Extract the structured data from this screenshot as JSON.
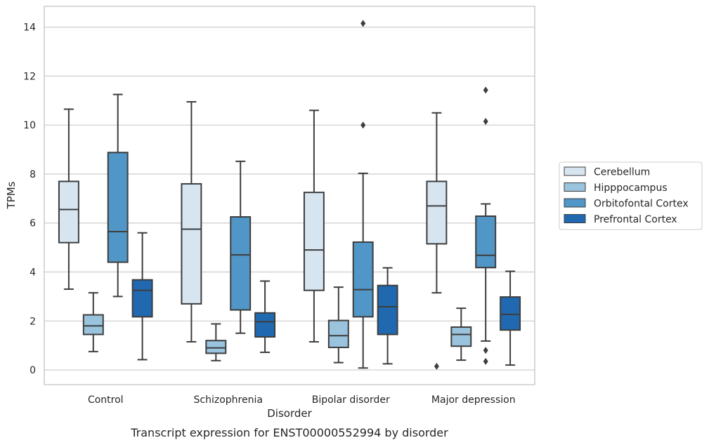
{
  "chart_data": {
    "type": "box",
    "caption": "Transcript expression for ENST00000552994 by disorder",
    "xlabel": "Disorder",
    "ylabel": "TPMs",
    "ylim": [
      -0.6,
      14.85
    ],
    "yticks": [
      0,
      2,
      4,
      6,
      8,
      10,
      12,
      14
    ],
    "grid": "horizontal",
    "legend_placement": "center-right outside",
    "categories": [
      "Control",
      "Schizophrenia",
      "Bipolar disorder",
      "Major depression"
    ],
    "series": [
      {
        "name": "Cerebellum",
        "color": "#d7e5f1",
        "boxes": [
          {
            "whislo": 3.3,
            "q1": 5.2,
            "med": 6.55,
            "q3": 7.7,
            "whishi": 10.65,
            "fliers": []
          },
          {
            "whislo": 1.15,
            "q1": 2.7,
            "med": 5.75,
            "q3": 7.6,
            "whishi": 10.95,
            "fliers": []
          },
          {
            "whislo": 1.15,
            "q1": 3.25,
            "med": 4.9,
            "q3": 7.25,
            "whishi": 10.6,
            "fliers": []
          },
          {
            "whislo": 3.15,
            "q1": 5.15,
            "med": 6.7,
            "q3": 7.7,
            "whishi": 10.5,
            "fliers": [
              0.15
            ]
          }
        ]
      },
      {
        "name": "Hipppocampus",
        "color": "#9ac3dd",
        "boxes": [
          {
            "whislo": 0.75,
            "q1": 1.45,
            "med": 1.8,
            "q3": 2.25,
            "whishi": 3.15,
            "fliers": []
          },
          {
            "whislo": 0.38,
            "q1": 0.68,
            "med": 0.9,
            "q3": 1.2,
            "whishi": 1.88,
            "fliers": []
          },
          {
            "whislo": 0.3,
            "q1": 0.92,
            "med": 1.4,
            "q3": 2.02,
            "whishi": 3.38,
            "fliers": []
          },
          {
            "whislo": 0.4,
            "q1": 0.97,
            "med": 1.45,
            "q3": 1.75,
            "whishi": 2.52,
            "fliers": []
          }
        ]
      },
      {
        "name": "Orbitofontal Cortex",
        "color": "#5096c7",
        "boxes": [
          {
            "whislo": 3.0,
            "q1": 4.4,
            "med": 5.65,
            "q3": 8.88,
            "whishi": 11.25,
            "fliers": []
          },
          {
            "whislo": 1.5,
            "q1": 2.45,
            "med": 4.7,
            "q3": 6.25,
            "whishi": 8.52,
            "fliers": []
          },
          {
            "whislo": 0.08,
            "q1": 2.17,
            "med": 3.28,
            "q3": 5.22,
            "whishi": 8.03,
            "fliers": [
              10.0,
              14.15
            ]
          },
          {
            "whislo": 1.18,
            "q1": 4.18,
            "med": 4.68,
            "q3": 6.28,
            "whishi": 6.78,
            "fliers": [
              0.35,
              0.8,
              10.15,
              11.43
            ]
          }
        ]
      },
      {
        "name": "Prefrontal Cortex",
        "color": "#2069b0",
        "boxes": [
          {
            "whislo": 0.42,
            "q1": 2.17,
            "med": 3.25,
            "q3": 3.68,
            "whishi": 5.6,
            "fliers": []
          },
          {
            "whislo": 0.72,
            "q1": 1.35,
            "med": 1.97,
            "q3": 2.33,
            "whishi": 3.63,
            "fliers": []
          },
          {
            "whislo": 0.25,
            "q1": 1.45,
            "med": 2.58,
            "q3": 3.45,
            "whishi": 4.17,
            "fliers": []
          },
          {
            "whislo": 0.2,
            "q1": 1.63,
            "med": 2.27,
            "q3": 2.98,
            "whishi": 4.03,
            "fliers": []
          }
        ]
      }
    ]
  }
}
